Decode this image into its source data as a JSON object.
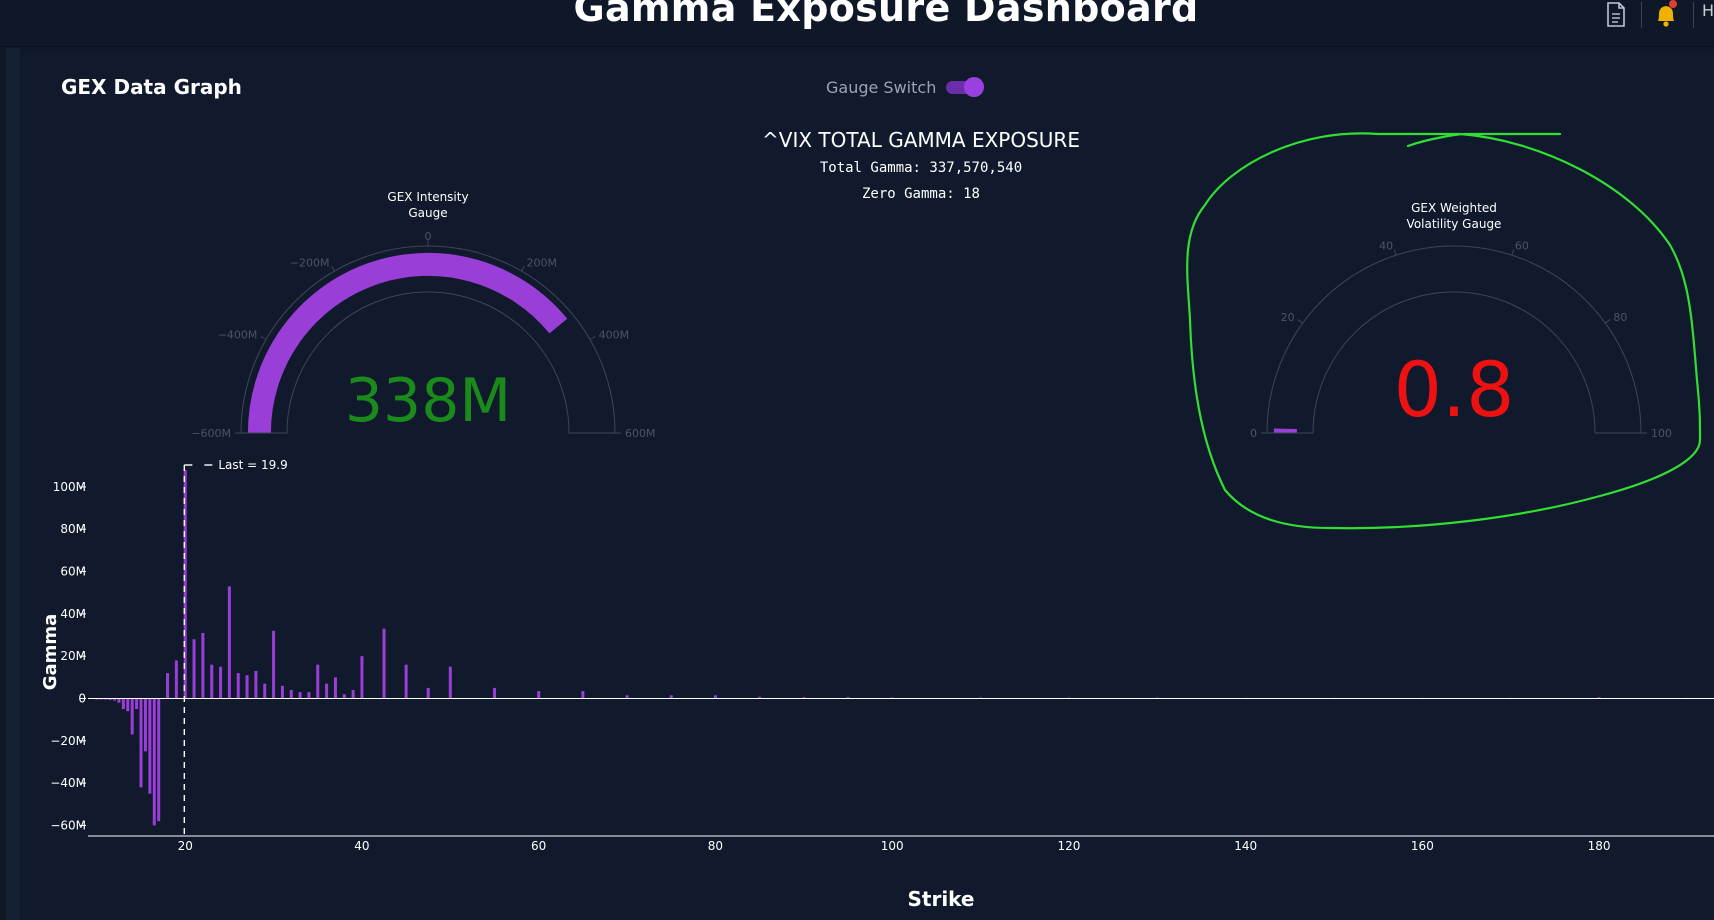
{
  "header": {
    "title": "Gamma Exposure Dashboard",
    "user_initial": "H",
    "icons": [
      "document-icon",
      "bell-icon"
    ],
    "notification_dot_color": "#e04030",
    "bell_color": "#f0b000"
  },
  "panel": {
    "title": "GEX Data Graph",
    "gauge_switch": {
      "label": "Gauge Switch",
      "on": true,
      "color": "#9a40e0"
    }
  },
  "summary": {
    "title": "^VIX TOTAL GAMMA EXPOSURE",
    "total_gamma": "Total Gamma: 337,570,540",
    "zero_gamma": "Zero Gamma: 18"
  },
  "intensity_gauge": {
    "title_line1": "GEX Intensity",
    "title_line2": "Gauge",
    "value_text": "338M",
    "value": 337570540,
    "range": [
      -600000000,
      600000000
    ],
    "ticks": [
      "−600M",
      "−400M",
      "−200M",
      "0",
      "200M",
      "400M",
      "600M"
    ],
    "tick_values": [
      -600000000,
      -400000000,
      -200000000,
      0,
      200000000,
      400000000,
      600000000
    ],
    "bar_color": "#9a3ed8",
    "value_color": "#1a8a1a"
  },
  "volatility_gauge": {
    "title_line1": "GEX Weighted",
    "title_line2": "Volatility Gauge",
    "value_text": "0.8",
    "value": 0.8,
    "range": [
      0,
      100
    ],
    "ticks": [
      "0",
      "20",
      "40",
      "60",
      "80",
      "100"
    ],
    "tick_values": [
      0,
      20,
      40,
      60,
      80,
      100
    ],
    "bar_color": "#9a3ed8",
    "value_color": "#ee1111",
    "annotation_color": "#33dd33"
  },
  "chart_data": {
    "type": "bar",
    "xlabel": "Strike",
    "ylabel": "Gamma",
    "xlim": [
      9,
      193
    ],
    "ylim": [
      -65000000,
      108000000
    ],
    "x_ticks": [
      20,
      40,
      60,
      80,
      100,
      120,
      140,
      160,
      180
    ],
    "x_tick_labels": [
      "20",
      "40",
      "60",
      "80",
      "100",
      "120",
      "140",
      "160",
      "180"
    ],
    "y_ticks": [
      -60000000,
      -40000000,
      -20000000,
      0,
      20000000,
      40000000,
      60000000,
      80000000,
      100000000
    ],
    "y_tick_labels": [
      "−60M",
      "−40M",
      "−20M",
      "0",
      "20M",
      "40M",
      "60M",
      "80M",
      "100M"
    ],
    "grid": false,
    "bar_color": "#9a3ed8",
    "last": {
      "x": 19.9,
      "label": "Last = 19.9"
    },
    "x": [
      10,
      10.5,
      11,
      11.5,
      12,
      12.5,
      13,
      13.5,
      14,
      14.5,
      15,
      15.5,
      16,
      16.5,
      17,
      18,
      19,
      20,
      21,
      22,
      23,
      24,
      25,
      26,
      27,
      28,
      29,
      30,
      31,
      32,
      33,
      34,
      35,
      36,
      37,
      38,
      39,
      40,
      42.5,
      45,
      47.5,
      50,
      55,
      60,
      65,
      70,
      75,
      80,
      85,
      90,
      95,
      100,
      110,
      120,
      130,
      140,
      150,
      160,
      170,
      180,
      190
    ],
    "values": [
      -300000,
      -400000,
      -500000,
      -700000,
      -1000000,
      -2000000,
      -5000000,
      -6000000,
      -17000000,
      -5000000,
      -42000000,
      -25000000,
      -45000000,
      -60000000,
      -58000000,
      12000000,
      18000000,
      108000000,
      28000000,
      31000000,
      16000000,
      15000000,
      53000000,
      12000000,
      11000000,
      13000000,
      7000000,
      32000000,
      6000000,
      4000000,
      3000000,
      3000000,
      16000000,
      7000000,
      10000000,
      2000000,
      4000000,
      20000000,
      33000000,
      16000000,
      5000000,
      15000000,
      5000000,
      3500000,
      3500000,
      1500000,
      1500000,
      1500000,
      800000,
      600000,
      600000,
      500000,
      400000,
      400000,
      400000,
      300000,
      300000,
      300000,
      300000,
      600000,
      300000
    ]
  }
}
